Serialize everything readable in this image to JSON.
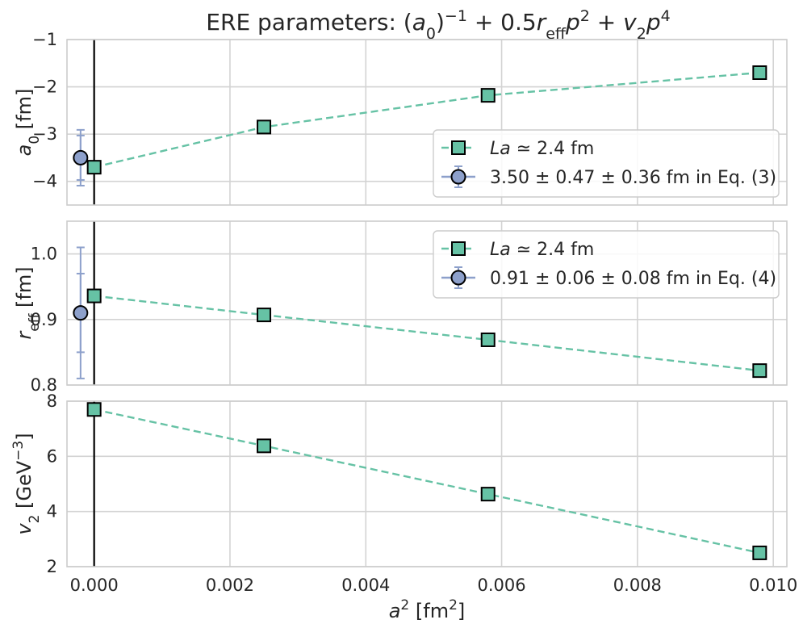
{
  "chart_data": {
    "type": "line",
    "title": "ERE parameters: (a₀)⁻¹ + 0.5rₑₒₒp² + v₂p⁴",
    "title_parts": {
      "prefix": "ERE parameters: (",
      "a": "a",
      "a_sub": "0",
      "inv": "−1",
      "mid": " + 0.5",
      "r": "r",
      "r_sub": "eff",
      "p1": "p",
      "p1_sup": "2",
      "plus2": " + ",
      "v": "v",
      "v_sub": "2",
      "p2": "p",
      "p2_sup": "4"
    },
    "xlabel": {
      "base": "a",
      "sup": "2",
      "unit": " [fm",
      "unit_sup": "2",
      "close": "]"
    },
    "xlim": [
      -0.0004,
      0.0102
    ],
    "xticks": [
      "0.000",
      "0.002",
      "0.004",
      "0.006",
      "0.008",
      "0.010"
    ],
    "xtick_values": [
      0,
      0.002,
      0.004,
      0.006,
      0.008,
      0.01
    ],
    "vline_x": 0,
    "colors": {
      "lattice": "#66c2a5",
      "phys": "#8da0cb",
      "vline": "#000000",
      "grid": "#d3d3d3"
    },
    "panels": [
      {
        "id": "a0",
        "ylabel": {
          "base": "a",
          "sub": "0",
          "unit": " [fm]"
        },
        "ylim": [
          -4.5,
          -1
        ],
        "yticks": [
          "−1",
          "−2",
          "−3",
          "−4"
        ],
        "ytick_values": [
          -1,
          -2,
          -3,
          -4
        ],
        "series": [
          {
            "name": "La ≃ 2.4 fm",
            "x": [
              0,
              0.0025,
              0.0058,
              0.0098
            ],
            "y": [
              -3.7,
              -2.85,
              -2.18,
              -1.7
            ]
          }
        ],
        "point": {
          "name": "3.50 ± 0.47 ± 0.36 fm in Eq. (3)",
          "x": -0.0002,
          "y": -3.5,
          "err_stat": 0.47,
          "err_total": 0.59
        },
        "legend": [
          {
            "kind": "line",
            "math": "La",
            "text": " ≃ 2.4 fm"
          },
          {
            "kind": "point",
            "math": "3.50 ± 0.47 ± 0.36",
            "text": " fm in Eq. (3)"
          }
        ],
        "legend_loc": "lower-right"
      },
      {
        "id": "reff",
        "ylabel": {
          "base": "r",
          "sub": "eff",
          "unit": " [fm]"
        },
        "ylim": [
          0.8,
          1.05
        ],
        "yticks": [
          "0.8",
          "0.9",
          "1.0"
        ],
        "ytick_values": [
          0.8,
          0.9,
          1.0
        ],
        "series": [
          {
            "name": "La ≃ 2.4 fm",
            "x": [
              0,
              0.0025,
              0.0058,
              0.0098
            ],
            "y": [
              0.936,
              0.907,
              0.869,
              0.822
            ]
          }
        ],
        "point": {
          "name": "0.91 ± 0.06 ± 0.08 fm in Eq. (4)",
          "x": -0.0002,
          "y": 0.91,
          "err_stat": 0.06,
          "err_total": 0.1
        },
        "legend": [
          {
            "kind": "line",
            "math": "La",
            "text": " ≃ 2.4 fm"
          },
          {
            "kind": "point",
            "math": "0.91 ± 0.06 ± 0.08",
            "text": " fm in Eq. (4)"
          }
        ],
        "legend_loc": "upper-right"
      },
      {
        "id": "v2",
        "ylabel": {
          "base": "v",
          "sub": "2",
          "unit": " [GeV",
          "unit_sup": "−3",
          "close": "]"
        },
        "ylim": [
          2,
          8
        ],
        "yticks": [
          "2",
          "4",
          "6",
          "8"
        ],
        "ytick_values": [
          2,
          4,
          6,
          8
        ],
        "series": [
          {
            "name": "La ≃ 2.4 fm",
            "x": [
              0,
              0.0025,
              0.0058,
              0.0098
            ],
            "y": [
              7.7,
              6.38,
              4.63,
              2.5
            ]
          }
        ]
      }
    ]
  }
}
